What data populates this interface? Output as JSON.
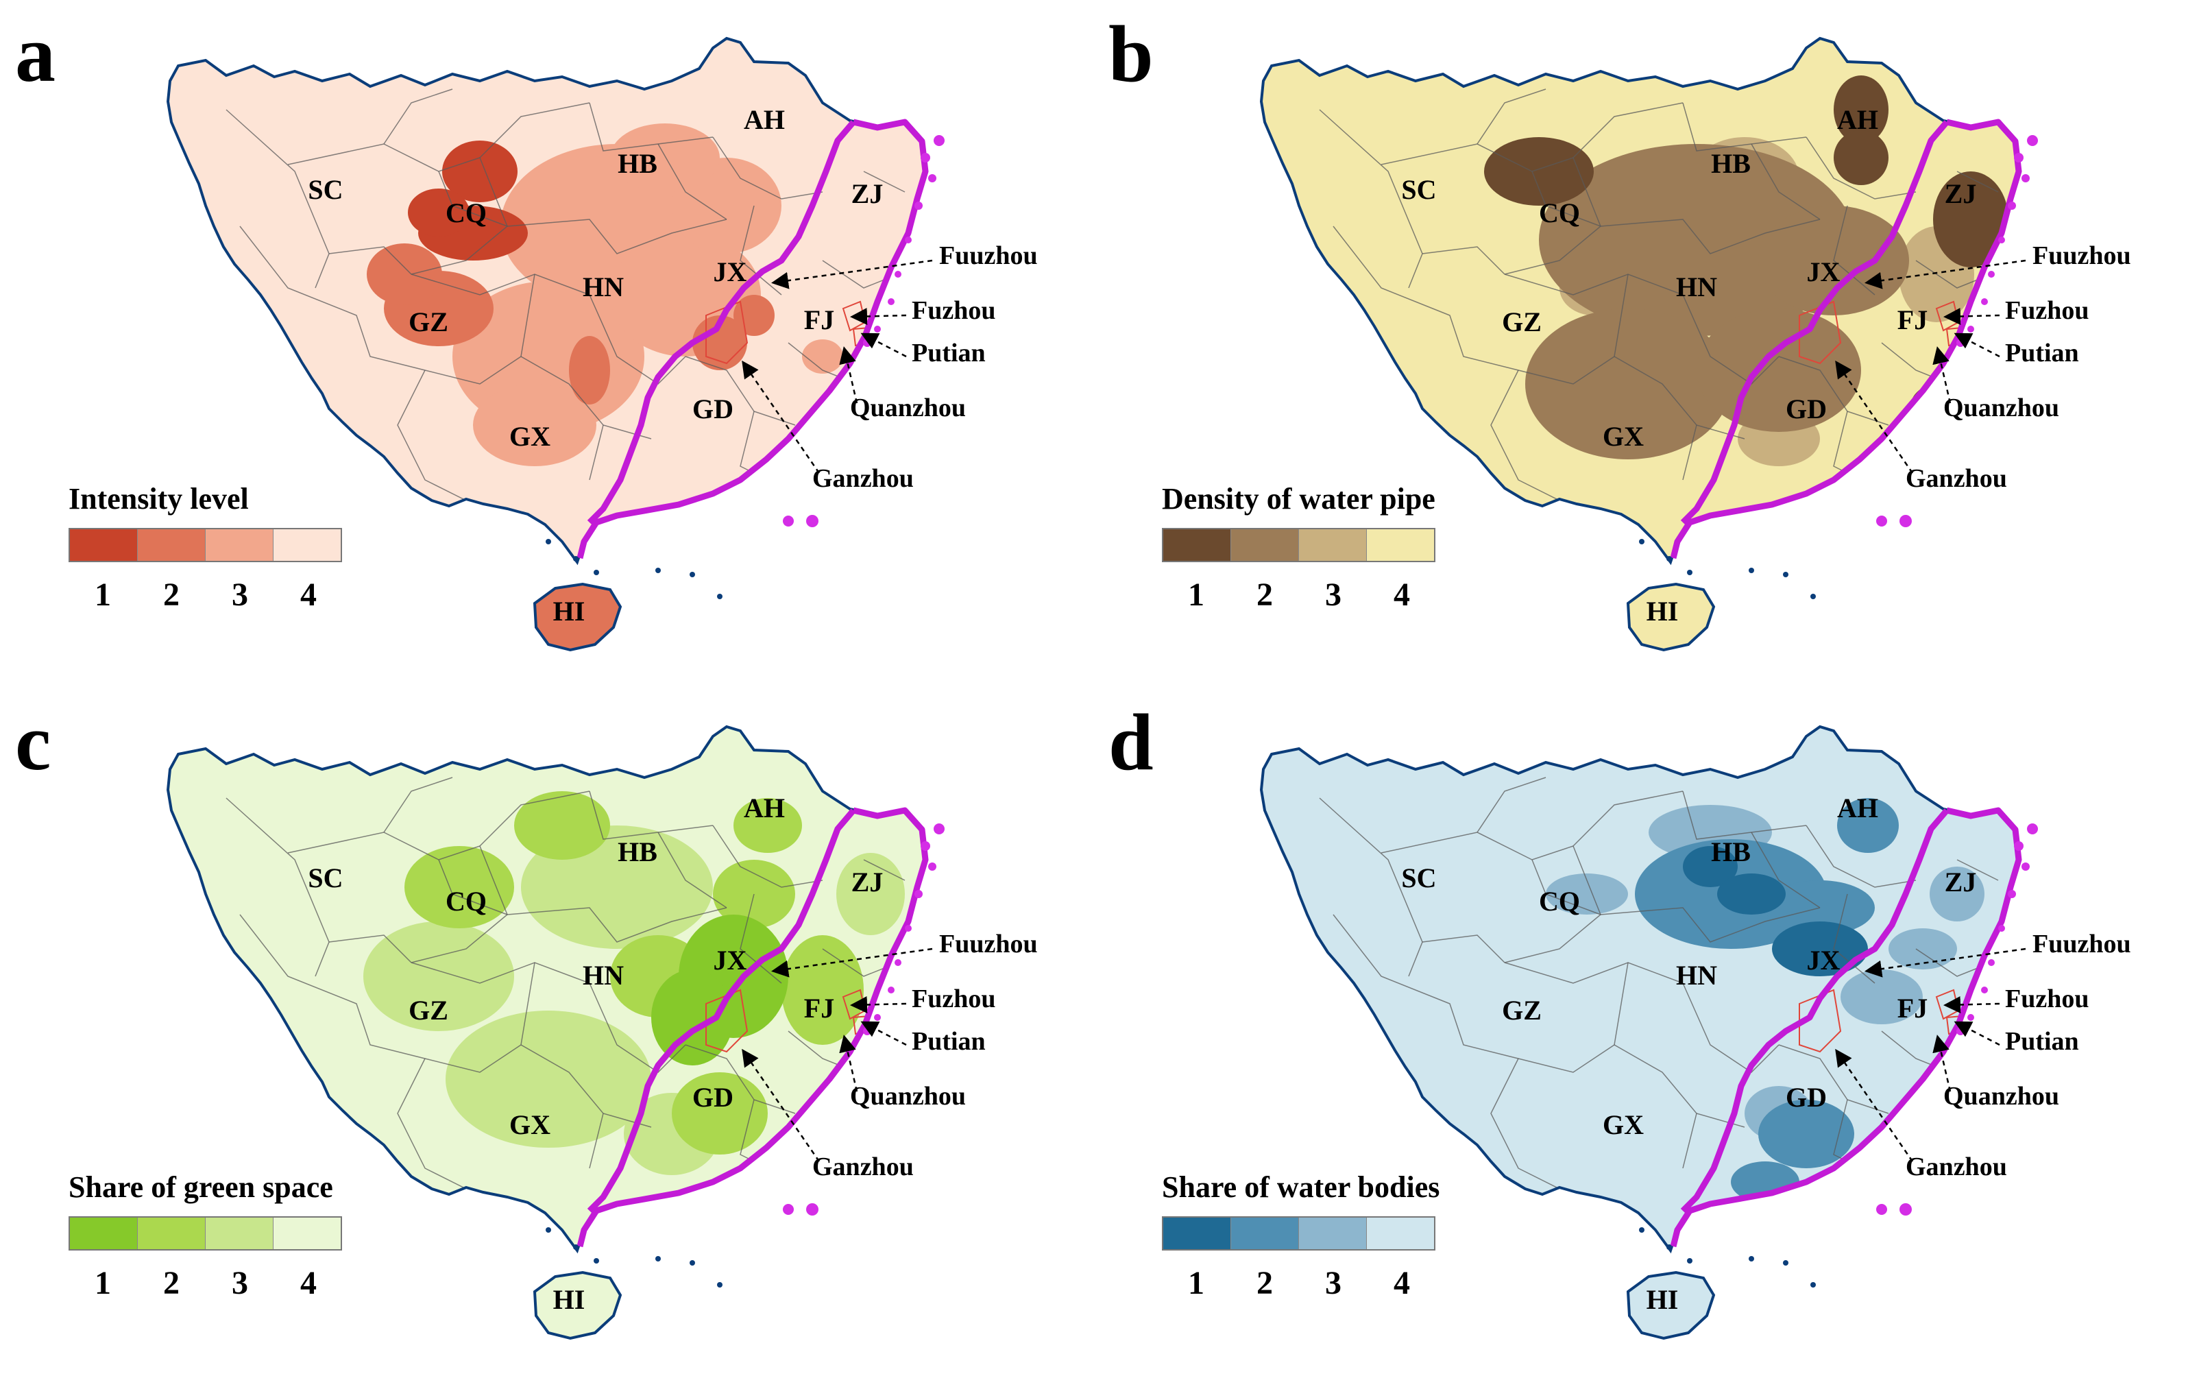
{
  "panels": [
    {
      "id": "a",
      "legend_title": "Intensity level",
      "ticks": [
        "1",
        "2",
        "3",
        "4"
      ],
      "colors": [
        "#c8432a",
        "#e07457",
        "#f2a78c",
        "#fde4d6"
      ]
    },
    {
      "id": "b",
      "legend_title": "Density of water pipe",
      "ticks": [
        "1",
        "2",
        "3",
        "4"
      ],
      "colors": [
        "#6b4a2e",
        "#9c7c57",
        "#c9b07f",
        "#f3e9aa"
      ]
    },
    {
      "id": "c",
      "legend_title": "Share of green space",
      "ticks": [
        "1",
        "2",
        "3",
        "4"
      ],
      "colors": [
        "#86c92a",
        "#abd84e",
        "#c8e68c",
        "#eaf7d4"
      ]
    },
    {
      "id": "d",
      "legend_title": "Share of water bodies",
      "ticks": [
        "1",
        "2",
        "3",
        "4"
      ],
      "colors": [
        "#1f6a94",
        "#4f8fb3",
        "#8db6ce",
        "#d0e6ee"
      ]
    }
  ],
  "provinces": [
    "SC",
    "CQ",
    "HB",
    "AH",
    "ZJ",
    "JX",
    "HN",
    "GZ",
    "FJ",
    "GX",
    "GD",
    "HI"
  ],
  "cities": [
    "Fuuzhou",
    "Fuzhou",
    "Putian",
    "Quanzhou",
    "Ganzhou"
  ],
  "style": {
    "outline_color": "#0b3d7a",
    "highlight_boundary_color": "#c21bd6",
    "coast_dots_color": "#d42de6"
  }
}
